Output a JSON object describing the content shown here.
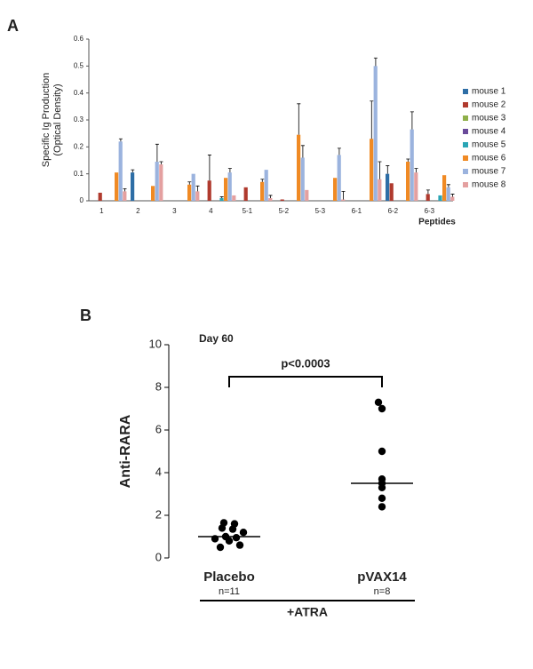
{
  "chart_data": [
    {
      "type": "bar",
      "panel": "A",
      "ylabel": [
        "Specific Ig Production",
        "(Optical Density)"
      ],
      "xlabel": "Peptides",
      "categories": [
        "1",
        "2",
        "3",
        "4",
        "5-1",
        "5-2",
        "5-3",
        "6-1",
        "6-2",
        "6-3"
      ],
      "ylim": [
        0,
        0.6
      ],
      "yticks": [
        0,
        0.1,
        0.2,
        0.3,
        0.4,
        0.5,
        0.6
      ],
      "series": [
        {
          "name": "mouse 1",
          "color": "#2e6ea6",
          "values": [
            0,
            0.105,
            0,
            0,
            0,
            0,
            0,
            0,
            0.1,
            0
          ],
          "errors": [
            null,
            0.01,
            null,
            null,
            null,
            null,
            null,
            null,
            0.03,
            null
          ]
        },
        {
          "name": "mouse 2",
          "color": "#b03a2e",
          "values": [
            0.03,
            0,
            0,
            0.075,
            0.05,
            0.005,
            0,
            0,
            0.065,
            0.025
          ],
          "errors": [
            null,
            null,
            null,
            0.095,
            null,
            null,
            null,
            null,
            null,
            0.015
          ]
        },
        {
          "name": "mouse 3",
          "color": "#8fb04a",
          "values": [
            0,
            0,
            0,
            0,
            0,
            0,
            0,
            0,
            0,
            0
          ],
          "errors": [
            null,
            null,
            null,
            null,
            null,
            null,
            null,
            null,
            null,
            null
          ]
        },
        {
          "name": "mouse 4",
          "color": "#6a4a9a",
          "values": [
            0,
            0,
            0,
            0,
            0,
            0,
            0,
            0,
            0,
            0
          ],
          "errors": [
            null,
            null,
            null,
            null,
            null,
            null,
            null,
            null,
            null,
            null
          ]
        },
        {
          "name": "mouse 5",
          "color": "#2aa5b5",
          "values": [
            0,
            0,
            0,
            0.01,
            0,
            0,
            0,
            0,
            0,
            0.02
          ],
          "errors": [
            null,
            null,
            null,
            0.005,
            null,
            null,
            null,
            null,
            null,
            null
          ]
        },
        {
          "name": "mouse 6",
          "color": "#f08a24",
          "values": [
            0.105,
            0.055,
            0.06,
            0.085,
            0.07,
            0.245,
            0.085,
            0.23,
            0.145,
            0.095
          ],
          "errors": [
            null,
            null,
            0.01,
            null,
            0.01,
            0.115,
            null,
            0.14,
            0.01,
            null
          ]
        },
        {
          "name": "mouse 7",
          "color": "#9bb3de",
          "values": [
            0.22,
            0.145,
            0.1,
            0.105,
            0.115,
            0.16,
            0.17,
            0.5,
            0.265,
            0.05
          ],
          "errors": [
            0.01,
            0.065,
            null,
            0.015,
            null,
            0.045,
            0.025,
            0.03,
            0.065,
            0.01
          ]
        },
        {
          "name": "mouse 8",
          "color": "#e4a0a0",
          "values": [
            0.035,
            0.135,
            0.035,
            0.02,
            0.01,
            0.04,
            0.005,
            0.08,
            0.105,
            0.015
          ],
          "errors": [
            0.01,
            0.01,
            0.02,
            null,
            0.01,
            null,
            0.03,
            0.065,
            0.015,
            0.01
          ]
        }
      ]
    },
    {
      "type": "dot",
      "panel": "B",
      "title": "Day 60",
      "ylabel": "Anti-RARA",
      "annotation": "p<0.0003",
      "group_label": "+ATRA",
      "categories": [
        "Placebo",
        "pVAX14"
      ],
      "sublabels": [
        "n=11",
        "n=8"
      ],
      "ylim": [
        0,
        10
      ],
      "yticks": [
        0,
        2,
        4,
        6,
        8,
        10
      ],
      "groups": [
        [
          1.65,
          1.6,
          1.4,
          1.35,
          1.2,
          1.0,
          0.95,
          0.9,
          0.8,
          0.6,
          0.5
        ],
        [
          7.3,
          7.0,
          5.0,
          3.7,
          3.5,
          3.3,
          2.8,
          2.4
        ]
      ],
      "medians": [
        1.0,
        3.5
      ],
      "color": "#000000"
    }
  ]
}
